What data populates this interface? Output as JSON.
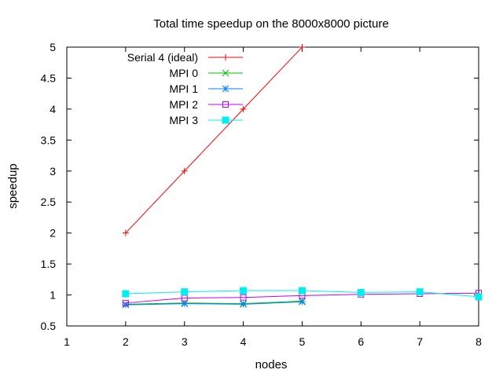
{
  "chart_data": {
    "type": "line",
    "title": "Total time speedup on the 8000x8000 picture",
    "xlabel": "nodes",
    "ylabel": "speedup",
    "xlim": [
      1,
      8
    ],
    "ylim": [
      0.5,
      5
    ],
    "xticks": [
      1,
      2,
      3,
      4,
      5,
      6,
      7,
      8
    ],
    "yticks": [
      0.5,
      1,
      1.5,
      2,
      2.5,
      3,
      3.5,
      4,
      4.5,
      5
    ],
    "grid": false,
    "legend_position": "top-left",
    "series": [
      {
        "name": "Serial 4 (ideal)",
        "color": "#ff0000",
        "marker": "plus",
        "points": [
          [
            2,
            2
          ],
          [
            3,
            3
          ],
          [
            4,
            4
          ],
          [
            5,
            5
          ]
        ]
      },
      {
        "name": "MPI 0",
        "color": "#00c000",
        "marker": "cross",
        "points": [
          [
            2,
            0.85
          ],
          [
            3,
            0.87
          ],
          [
            4,
            0.86
          ],
          [
            5,
            0.9
          ]
        ]
      },
      {
        "name": "MPI 1",
        "color": "#0080ff",
        "marker": "star",
        "points": [
          [
            2,
            0.84
          ],
          [
            3,
            0.86
          ],
          [
            4,
            0.85
          ],
          [
            5,
            0.89
          ]
        ]
      },
      {
        "name": "MPI 2",
        "color": "#c000ff",
        "marker": "square-open",
        "points": [
          [
            2,
            0.87
          ],
          [
            3,
            0.95
          ],
          [
            4,
            0.96
          ],
          [
            5,
            0.99
          ],
          [
            6,
            1.01
          ],
          [
            7,
            1.02
          ],
          [
            8,
            1.03
          ]
        ]
      },
      {
        "name": "MPI 3",
        "color": "#00eeee",
        "marker": "square-filled",
        "points": [
          [
            2,
            1.02
          ],
          [
            3,
            1.05
          ],
          [
            4,
            1.07
          ],
          [
            5,
            1.07
          ],
          [
            6,
            1.04
          ],
          [
            7,
            1.05
          ],
          [
            8,
            0.97
          ]
        ]
      }
    ]
  }
}
